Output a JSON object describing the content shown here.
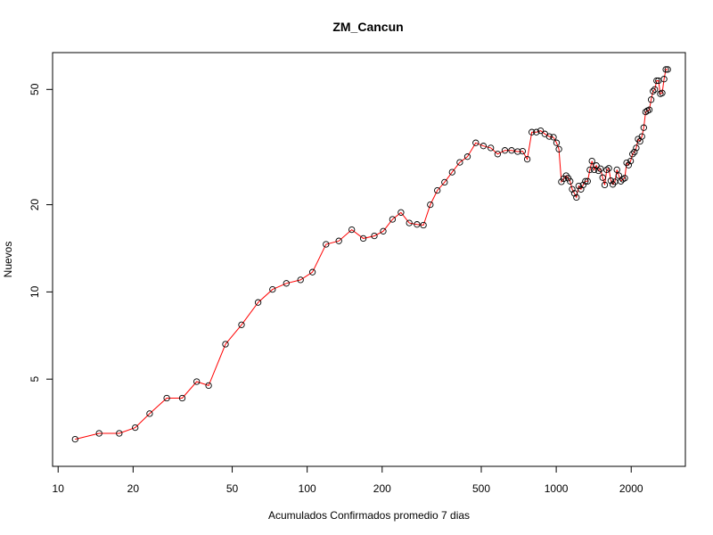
{
  "chart_data": {
    "type": "line",
    "title": "ZM_Cancun",
    "xlabel": "Acumulados Confirmados promedio  7  dias",
    "ylabel": "Nuevos",
    "x_scale": "log",
    "y_scale": "log",
    "xlim": [
      9.5,
      3300
    ],
    "ylim": [
      2.5,
      67
    ],
    "x_ticks": [
      10,
      20,
      50,
      100,
      200,
      500,
      1000,
      2000
    ],
    "y_ticks": [
      5,
      10,
      20,
      50
    ],
    "grid": false,
    "legend": "none",
    "line_color": "#ff0000",
    "marker_color": "#000000",
    "x": [
      11.7,
      14.6,
      17.6,
      20.4,
      23.3,
      27.3,
      31.5,
      36.0,
      40.2,
      47.0,
      54.5,
      63.5,
      72.6,
      82.5,
      94.0,
      105,
      119,
      134,
      151,
      168,
      186,
      202,
      220,
      238,
      257,
      276,
      293,
      312,
      333,
      356,
      382,
      410,
      440,
      475,
      510,
      546,
      582,
      622,
      662,
      700,
      733,
      765,
      798,
      832,
      866,
      900,
      938,
      975,
      1003,
      1025,
      1049,
      1072,
      1096,
      1117,
      1137,
      1159,
      1183,
      1206,
      1231,
      1257,
      1283,
      1309,
      1336,
      1365,
      1392,
      1420,
      1449,
      1478,
      1506,
      1536,
      1566,
      1596,
      1626,
      1657,
      1688,
      1720,
      1752,
      1784,
      1817,
      1850,
      1884,
      1918,
      1953,
      1989,
      2024,
      2060,
      2096,
      2133,
      2170,
      2208,
      2246,
      2285,
      2324,
      2364,
      2405,
      2446,
      2488,
      2531,
      2574,
      2618,
      2663,
      2709,
      2756,
      2804
    ],
    "y": [
      3.1,
      3.25,
      3.25,
      3.4,
      3.8,
      4.3,
      4.3,
      4.9,
      4.75,
      6.6,
      7.7,
      9.2,
      10.2,
      10.7,
      11.0,
      11.7,
      14.6,
      15.0,
      16.4,
      15.3,
      15.6,
      16.2,
      17.8,
      18.8,
      17.3,
      17.1,
      17.0,
      20.0,
      22.4,
      23.9,
      25.9,
      28.0,
      29.3,
      32.7,
      31.9,
      31.4,
      29.9,
      30.8,
      30.8,
      30.5,
      30.6,
      28.7,
      35.6,
      35.6,
      36.0,
      35.1,
      34.4,
      34.2,
      32.7,
      31.1,
      24.0,
      24.6,
      25.2,
      24.7,
      24.1,
      22.6,
      21.9,
      21.2,
      23.2,
      22.6,
      23.4,
      24.1,
      24.1,
      26.4,
      28.3,
      26.4,
      27.3,
      26.2,
      26.6,
      24.8,
      23.4,
      26.4,
      26.7,
      24.2,
      23.5,
      24.0,
      26.4,
      25.2,
      24.1,
      24.5,
      24.7,
      27.9,
      27.4,
      28.3,
      29.9,
      30.4,
      31.4,
      33.7,
      33.1,
      34.4,
      36.9,
      41.8,
      42.2,
      42.5,
      46.1,
      49.3,
      50.0,
      53.6,
      53.6,
      48.3,
      48.6,
      54.3,
      58.6,
      58.6
    ]
  }
}
